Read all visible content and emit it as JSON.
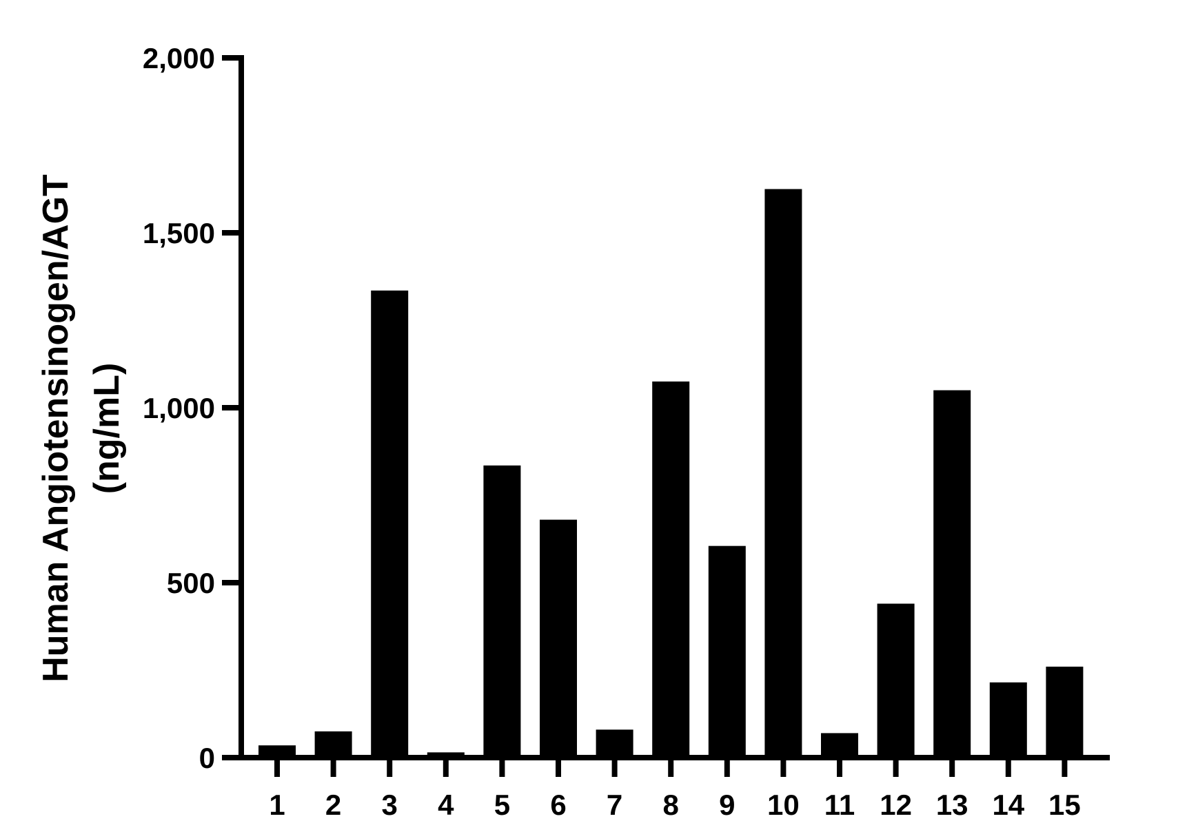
{
  "chart_data": {
    "type": "bar",
    "title": "",
    "xlabel": "",
    "ylabel": "Human Angiotensinogen/AGT",
    "ylabel_unit": "(ng/mL)",
    "categories": [
      "1",
      "2",
      "3",
      "4",
      "5",
      "6",
      "7",
      "8",
      "9",
      "10",
      "11",
      "12",
      "13",
      "14",
      "15"
    ],
    "values": [
      35,
      75,
      1335,
      15,
      835,
      680,
      80,
      1075,
      605,
      1625,
      70,
      440,
      1050,
      215,
      260
    ],
    "ylim": [
      0,
      2000
    ],
    "yticks": [
      0,
      500,
      1000,
      1500,
      2000
    ],
    "ytick_labels": [
      "0",
      "500",
      "1,000",
      "1,500",
      "2,000"
    ],
    "grid": false,
    "legend": "none",
    "bar_color": "#000000"
  }
}
